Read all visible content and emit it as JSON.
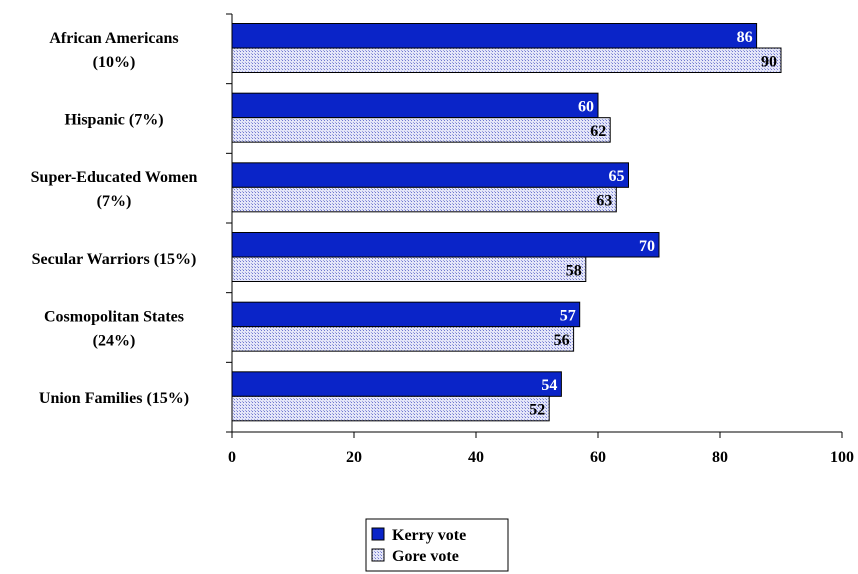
{
  "chart_data": {
    "type": "bar",
    "orientation": "horizontal",
    "categories": [
      [
        "African Americans",
        "(10%)"
      ],
      [
        "Hispanic  (7%)"
      ],
      [
        "Super-Educated Women",
        "(7%)"
      ],
      [
        "Secular Warriors  (15%)"
      ],
      [
        "Cosmopolitan States",
        "(24%)"
      ],
      [
        "Union Families  (15%)"
      ]
    ],
    "series": [
      {
        "name": "Kerry vote",
        "values": [
          86,
          60,
          65,
          70,
          57,
          54
        ],
        "color": "#0a24c8",
        "label_color": "#ffffff",
        "pattern": "solid"
      },
      {
        "name": "Gore vote",
        "values": [
          90,
          62,
          63,
          58,
          56,
          52
        ],
        "color": "#c8ccf0",
        "label_color": "#000000",
        "pattern": "hatched"
      }
    ],
    "xlim": [
      0,
      100
    ],
    "xticks": [
      0,
      20,
      40,
      60,
      80,
      100
    ],
    "tick_labels": [
      "0",
      "20",
      "40",
      "60",
      "80",
      "100"
    ],
    "title": "",
    "xlabel": "",
    "ylabel": "",
    "grid": false,
    "legend_position": "bottom-center",
    "data_labels": true
  }
}
